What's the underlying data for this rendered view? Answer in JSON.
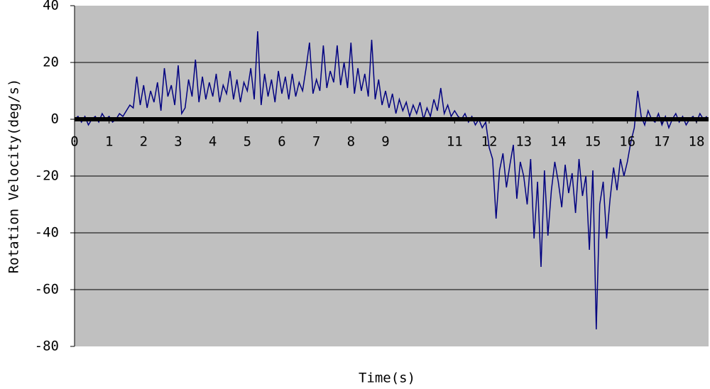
{
  "chart_data": {
    "type": "line",
    "xlabel": "Time(s)",
    "ylabel": "Rotation Velocity(deg/s)",
    "x": [
      0,
      0.1,
      0.2,
      0.3,
      0.4,
      0.5,
      0.6,
      0.7,
      0.8,
      0.9,
      1,
      1.1,
      1.2,
      1.3,
      1.4,
      1.5,
      1.6,
      1.7,
      1.8,
      1.9,
      2,
      2.1,
      2.2,
      2.3,
      2.4,
      2.5,
      2.6,
      2.7,
      2.8,
      2.9,
      3,
      3.1,
      3.2,
      3.3,
      3.4,
      3.5,
      3.6,
      3.7,
      3.8,
      3.9,
      4,
      4.1,
      4.2,
      4.3,
      4.4,
      4.5,
      4.6,
      4.7,
      4.8,
      4.9,
      5,
      5.1,
      5.2,
      5.3,
      5.4,
      5.5,
      5.6,
      5.7,
      5.8,
      5.9,
      6,
      6.1,
      6.2,
      6.3,
      6.4,
      6.5,
      6.6,
      6.7,
      6.8,
      6.9,
      7,
      7.1,
      7.2,
      7.3,
      7.4,
      7.5,
      7.6,
      7.7,
      7.8,
      7.9,
      8,
      8.1,
      8.2,
      8.3,
      8.4,
      8.5,
      8.6,
      8.7,
      8.8,
      8.9,
      9,
      9.1,
      9.2,
      9.3,
      9.4,
      9.5,
      9.6,
      9.7,
      9.8,
      9.9,
      10,
      10.1,
      10.2,
      10.3,
      10.4,
      10.5,
      10.6,
      10.7,
      10.8,
      10.9,
      11,
      11.1,
      11.2,
      11.3,
      11.4,
      11.5,
      11.6,
      11.7,
      11.8,
      11.9,
      12,
      12.1,
      12.2,
      12.3,
      12.4,
      12.5,
      12.6,
      12.7,
      12.8,
      12.9,
      13,
      13.1,
      13.2,
      13.3,
      13.4,
      13.5,
      13.6,
      13.7,
      13.8,
      13.9,
      14,
      14.1,
      14.2,
      14.3,
      14.4,
      14.5,
      14.6,
      14.7,
      14.8,
      14.9,
      15,
      15.1,
      15.2,
      15.3,
      15.4,
      15.5,
      15.6,
      15.7,
      15.8,
      15.9,
      16,
      16.1,
      16.2,
      16.3,
      16.4,
      16.5,
      16.6,
      16.7,
      16.8,
      16.9,
      17,
      17.1,
      17.2,
      17.3,
      17.4,
      17.5,
      17.6,
      17.7,
      17.8,
      17.9,
      18,
      18.1,
      18.2,
      18.3
    ],
    "values": [
      0,
      1,
      -1,
      1,
      -2,
      0,
      1,
      -1,
      2,
      0,
      1,
      -1,
      0,
      2,
      1,
      3,
      5,
      4,
      15,
      5,
      12,
      4,
      10,
      6,
      13,
      3,
      18,
      8,
      12,
      5,
      19,
      2,
      4,
      14,
      8,
      21,
      6,
      15,
      7,
      13,
      8,
      16,
      6,
      12,
      9,
      17,
      7,
      14,
      6,
      13,
      10,
      18,
      7,
      31,
      5,
      16,
      8,
      14,
      6,
      17,
      9,
      15,
      7,
      16,
      8,
      13,
      10,
      18,
      27,
      9,
      14,
      10,
      26,
      11,
      17,
      13,
      26,
      12,
      20,
      11,
      27,
      9,
      18,
      10,
      16,
      8,
      28,
      7,
      14,
      5,
      10,
      4,
      9,
      2,
      7,
      3,
      6,
      1,
      5,
      2,
      6,
      0,
      4,
      1,
      7,
      3,
      11,
      2,
      5,
      1,
      3,
      1,
      0,
      2,
      -1,
      1,
      -2,
      0,
      -3,
      -1,
      -10,
      -14,
      -35,
      -18,
      -12,
      -24,
      -16,
      -9,
      -28,
      -15,
      -20,
      -30,
      -14,
      -42,
      -22,
      -52,
      -18,
      -41,
      -25,
      -15,
      -22,
      -31,
      -16,
      -26,
      -19,
      -33,
      -14,
      -27,
      -20,
      -46,
      -18,
      -74,
      -30,
      -22,
      -42,
      -28,
      -17,
      -25,
      -14,
      -20,
      -15,
      -8,
      -3,
      10,
      1,
      -2,
      3,
      0,
      -1,
      2,
      -2,
      1,
      -3,
      0,
      2,
      -1,
      1,
      -2,
      0,
      1,
      -1,
      2,
      0,
      1
    ],
    "color": "#000080",
    "xlim": [
      0,
      18.35
    ],
    "xticks": [
      0,
      1,
      2,
      3,
      4,
      5,
      6,
      7,
      8,
      9,
      11,
      12,
      13,
      14,
      15,
      16,
      17,
      18
    ],
    "ylim": [
      -80,
      40
    ],
    "yticks": [
      -80,
      -60,
      -40,
      -20,
      0,
      20,
      40
    ],
    "grid": true
  }
}
